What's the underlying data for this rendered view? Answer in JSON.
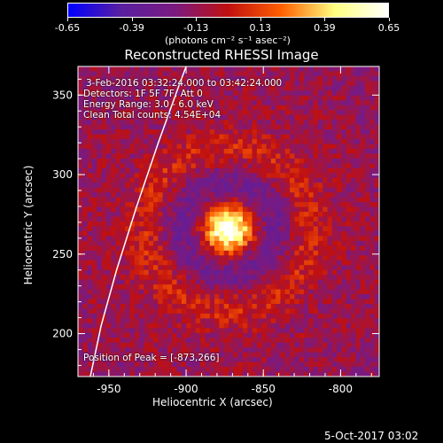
{
  "chart_data": {
    "type": "heatmap",
    "title": "Reconstructed RHESSI Image",
    "colorbar": {
      "ticks": [
        "-0.65",
        "-0.39",
        "-0.13",
        "0.13",
        "0.39",
        "0.65"
      ],
      "range": [
        -0.65,
        0.65
      ],
      "unit_label": "(photons cm⁻² s⁻¹ asec⁻²)",
      "stops": [
        "#0000ff",
        "#5a1fa0",
        "#7a1a80",
        "#c01010",
        "#ff6000",
        "#ffff80",
        "#ffffff"
      ]
    },
    "xlabel": "Heliocentric X (arcsec)",
    "ylabel": "Heliocentric Y (arcsec)",
    "xlim": [
      -970,
      -775
    ],
    "ylim": [
      173,
      368
    ],
    "xticks": [
      -950,
      -900,
      -850,
      -800
    ],
    "xtick_labels": [
      "-950",
      "-900",
      "-850",
      "-800"
    ],
    "yticks": [
      200,
      250,
      300,
      350
    ],
    "ytick_labels": [
      "200",
      "250",
      "300",
      "350"
    ],
    "peak": [
      -873,
      266
    ],
    "limb_arc": [
      [
        -962,
        173
      ],
      [
        -955,
        205
      ],
      [
        -945,
        240
      ],
      [
        -932,
        280
      ],
      [
        -918,
        320
      ],
      [
        -905,
        355
      ],
      [
        -900,
        368
      ]
    ],
    "annotations": {
      "time_range": "3-Feb-2016 03:32:24.000 to 03:42:24.000",
      "detectors": "Detectors: 1F 5F 7F, Att 0",
      "energy": "Energy Range: 3.0 - 6.0 keV",
      "clean": "Clean     Total counts: 4.54E+04",
      "peak_label": "Position of Peak = [-873,266]"
    }
  },
  "footer": {
    "timestamp": "5-Oct-2017 03:02"
  }
}
